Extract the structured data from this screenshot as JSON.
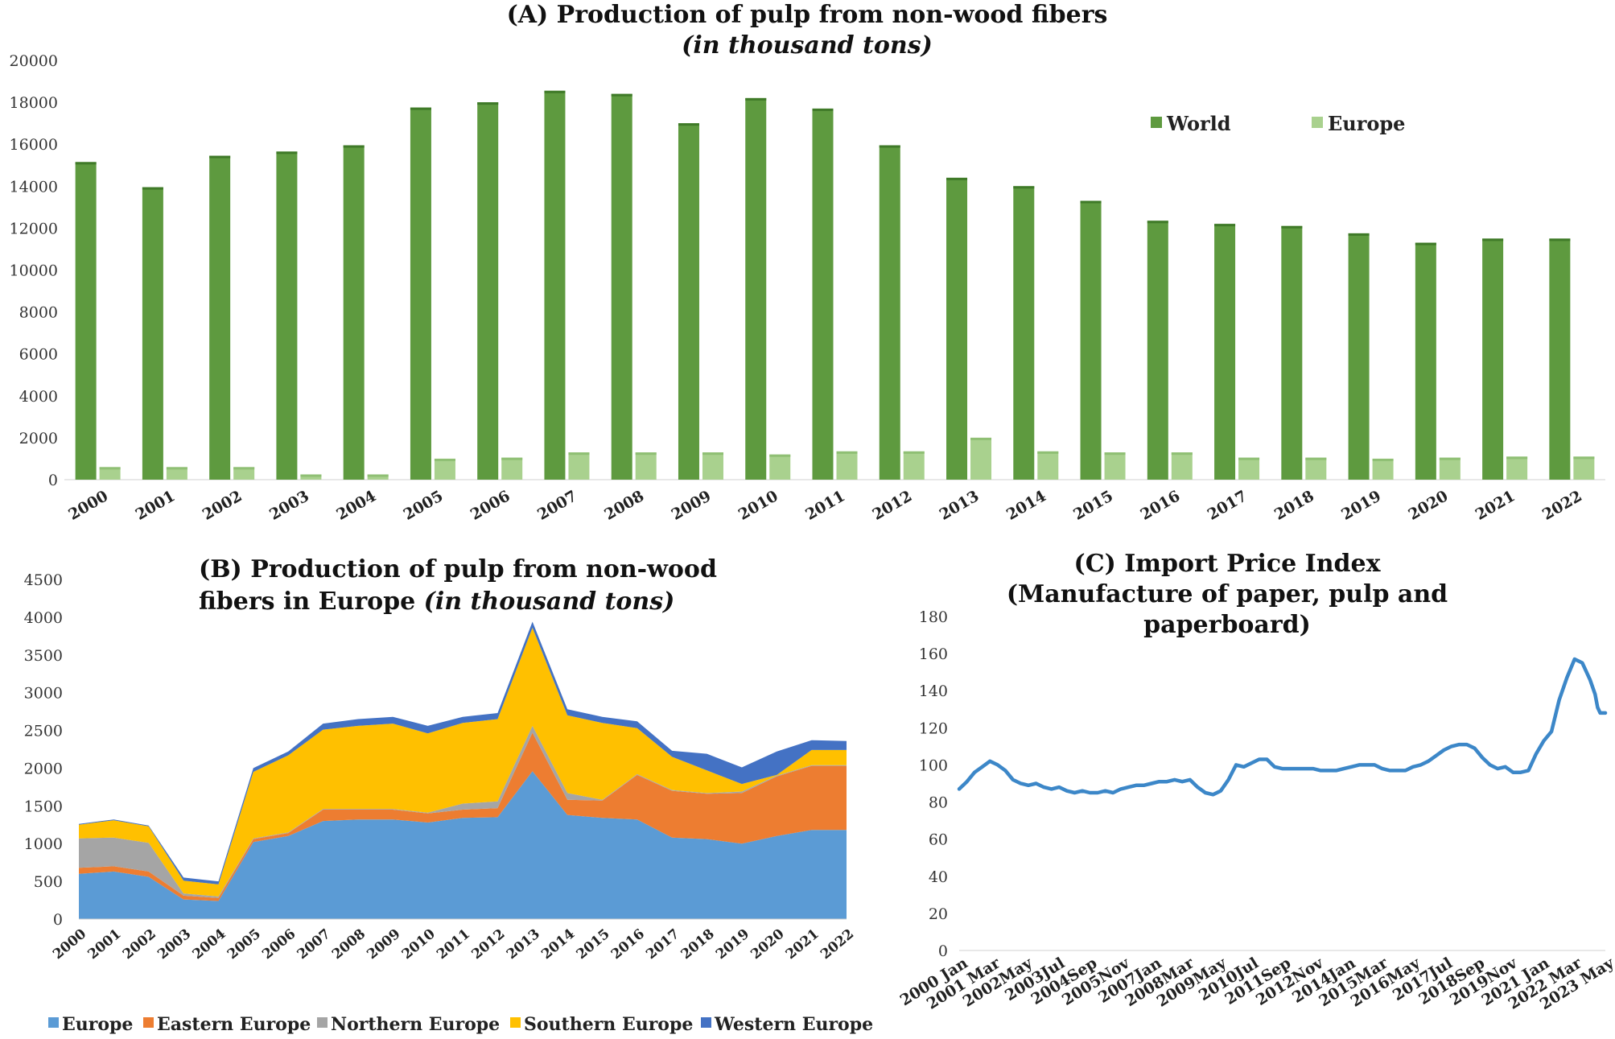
{
  "chart_data": [
    {
      "type": "bar",
      "title": "(A)  Production of pulp from non-wood fibers",
      "subtitle": "(in thousand tons)",
      "categories": [
        "2000",
        "2001",
        "2002",
        "2003",
        "2004",
        "2005",
        "2006",
        "2007",
        "2008",
        "2009",
        "2010",
        "2011",
        "2012",
        "2013",
        "2014",
        "2015",
        "2016",
        "2017",
        "2018",
        "2019",
        "2020",
        "2021",
        "2022"
      ],
      "series": [
        {
          "name": "World",
          "color": "#5e9a3f",
          "values": [
            15150,
            13950,
            15450,
            15650,
            15950,
            17750,
            18000,
            18550,
            18400,
            17000,
            18200,
            17700,
            15950,
            14400,
            14000,
            13300,
            12350,
            12200,
            12100,
            11750,
            11300,
            11500,
            11500
          ]
        },
        {
          "name": "Europe",
          "color": "#a9d18e",
          "values": [
            600,
            600,
            600,
            250,
            250,
            1000,
            1050,
            1300,
            1300,
            1300,
            1200,
            1350,
            1350,
            2000,
            1350,
            1300,
            1300,
            1050,
            1050,
            1000,
            1050,
            1100,
            1100
          ]
        }
      ],
      "ylim": [
        0,
        20000
      ],
      "yticks": [
        "0",
        "2000",
        "4000",
        "6000",
        "8000",
        "10000",
        "12000",
        "14000",
        "16000",
        "18000",
        "20000"
      ],
      "legend": "top-right"
    },
    {
      "type": "area",
      "title_line1": "(B)  Production of pulp from non-wood",
      "title_line2": "fibers in Europe ",
      "title_italic": "(in thousand tons)",
      "categories": [
        "2000",
        "2001",
        "2002",
        "2003",
        "2004",
        "2005",
        "2006",
        "2007",
        "2008",
        "2009",
        "2010",
        "2011",
        "2012",
        "2013",
        "2014",
        "2015",
        "2016",
        "2017",
        "2018",
        "2019",
        "2020",
        "2021",
        "2022"
      ],
      "stacked": true,
      "series": [
        {
          "name": "Europe",
          "color": "#5b9bd5",
          "values": [
            600,
            630,
            560,
            260,
            240,
            1020,
            1100,
            1300,
            1320,
            1320,
            1280,
            1340,
            1350,
            1960,
            1380,
            1340,
            1320,
            1080,
            1060,
            1000,
            1100,
            1180,
            1180
          ]
        },
        {
          "name": "Eastern Europe",
          "color": "#ed7d31",
          "values": [
            80,
            70,
            70,
            50,
            40,
            40,
            40,
            150,
            130,
            130,
            120,
            110,
            120,
            510,
            200,
            230,
            590,
            620,
            600,
            670,
            790,
            850,
            850
          ]
        },
        {
          "name": "Northern Europe",
          "color": "#a5a5a5",
          "values": [
            390,
            380,
            380,
            30,
            20,
            10,
            10,
            10,
            10,
            10,
            10,
            80,
            90,
            90,
            90,
            10,
            10,
            10,
            10,
            20,
            10,
            10,
            10
          ]
        },
        {
          "name": "Southern Europe",
          "color": "#ffc000",
          "values": [
            180,
            230,
            220,
            170,
            160,
            880,
            1020,
            1050,
            1100,
            1130,
            1050,
            1070,
            1090,
            1300,
            1030,
            1020,
            610,
            440,
            300,
            100,
            10,
            200,
            200
          ]
        },
        {
          "name": "Western Europe",
          "color": "#4472c4",
          "values": [
            10,
            10,
            10,
            40,
            40,
            50,
            50,
            80,
            90,
            90,
            100,
            80,
            80,
            80,
            80,
            80,
            90,
            80,
            220,
            220,
            310,
            130,
            120
          ]
        }
      ],
      "ylim": [
        0,
        4500
      ],
      "yticks": [
        "0",
        "500",
        "1000",
        "1500",
        "2000",
        "2500",
        "3000",
        "3500",
        "4000",
        "4500"
      ],
      "legend": "bottom"
    },
    {
      "type": "line",
      "title_lines": [
        "(C) Import Price Index",
        "(Manufacture of paper, pulp and",
        "paperboard)"
      ],
      "xticks": [
        "2000 Jan",
        "2001 Mar",
        "2002May",
        "2003Jul",
        "2004Sep",
        "2005Nov",
        "2007Jan",
        "2008Mar",
        "2009May",
        "2010Jul",
        "2011Sep",
        "2012Nov",
        "2014Jan",
        "2015Mar",
        "2016May",
        "2017Jul",
        "2018Sep",
        "2019Nov",
        "2021 Jan",
        "2022 Mar",
        "2023 May"
      ],
      "series": [
        {
          "name": "",
          "color": "#3c87c8",
          "points": [
            [
              0,
              87
            ],
            [
              3,
              91
            ],
            [
              6,
              96
            ],
            [
              9,
              99
            ],
            [
              12,
              102
            ],
            [
              15,
              100
            ],
            [
              18,
              97
            ],
            [
              21,
              92
            ],
            [
              24,
              90
            ],
            [
              27,
              89
            ],
            [
              30,
              90
            ],
            [
              33,
              88
            ],
            [
              36,
              87
            ],
            [
              39,
              88
            ],
            [
              42,
              86
            ],
            [
              45,
              85
            ],
            [
              48,
              86
            ],
            [
              51,
              85
            ],
            [
              54,
              85
            ],
            [
              57,
              86
            ],
            [
              60,
              85
            ],
            [
              63,
              87
            ],
            [
              66,
              88
            ],
            [
              69,
              89
            ],
            [
              72,
              89
            ],
            [
              75,
              90
            ],
            [
              78,
              91
            ],
            [
              81,
              91
            ],
            [
              84,
              92
            ],
            [
              87,
              91
            ],
            [
              90,
              92
            ],
            [
              93,
              88
            ],
            [
              96,
              85
            ],
            [
              99,
              84
            ],
            [
              102,
              86
            ],
            [
              105,
              92
            ],
            [
              108,
              100
            ],
            [
              111,
              99
            ],
            [
              114,
              101
            ],
            [
              117,
              103
            ],
            [
              120,
              103
            ],
            [
              123,
              99
            ],
            [
              126,
              98
            ],
            [
              129,
              98
            ],
            [
              132,
              98
            ],
            [
              135,
              98
            ],
            [
              138,
              98
            ],
            [
              141,
              97
            ],
            [
              144,
              97
            ],
            [
              147,
              97
            ],
            [
              150,
              98
            ],
            [
              153,
              99
            ],
            [
              156,
              100
            ],
            [
              159,
              100
            ],
            [
              162,
              100
            ],
            [
              165,
              98
            ],
            [
              168,
              97
            ],
            [
              171,
              97
            ],
            [
              174,
              97
            ],
            [
              177,
              99
            ],
            [
              180,
              100
            ],
            [
              183,
              102
            ],
            [
              186,
              105
            ],
            [
              189,
              108
            ],
            [
              192,
              110
            ],
            [
              195,
              111
            ],
            [
              198,
              111
            ],
            [
              201,
              109
            ],
            [
              204,
              104
            ],
            [
              207,
              100
            ],
            [
              210,
              98
            ],
            [
              213,
              99
            ],
            [
              216,
              96
            ],
            [
              219,
              96
            ],
            [
              222,
              97
            ],
            [
              225,
              106
            ],
            [
              228,
              113
            ],
            [
              231,
              118
            ],
            [
              234,
              135
            ],
            [
              237,
              147
            ],
            [
              240,
              157
            ],
            [
              243,
              155
            ],
            [
              246,
              146
            ],
            [
              248,
              138
            ],
            [
              249,
              131
            ],
            [
              250,
              128
            ],
            [
              252,
              128
            ]
          ]
        }
      ],
      "xlim": [
        0,
        252
      ],
      "ylim": [
        0,
        180
      ],
      "yticks": [
        "0",
        "20",
        "40",
        "60",
        "80",
        "100",
        "120",
        "140",
        "160",
        "180"
      ]
    }
  ]
}
